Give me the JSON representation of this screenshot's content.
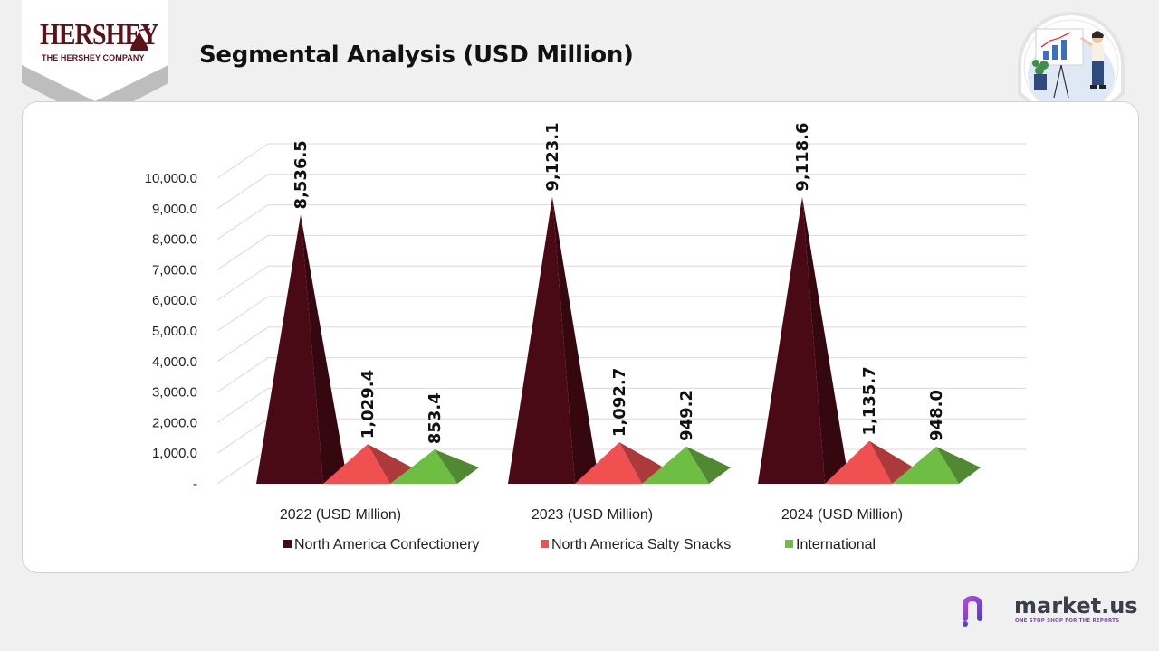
{
  "brand": {
    "name": "HERSHEY",
    "subtitle": "THE HERSHEY COMPANY"
  },
  "page": {
    "title": "Segmental Analysis (USD Million)"
  },
  "chart_data": {
    "type": "bar",
    "style": "3d-pyramid",
    "categories": [
      "2022 (USD Million)",
      "2023 (USD Million)",
      "2024 (USD Million)"
    ],
    "series": [
      {
        "name": "North America Confectionery",
        "color": "#4a0a15",
        "values": [
          8536.5,
          9123.1,
          9118.6
        ],
        "labels": [
          "8,536.5",
          "9,123.1",
          "9,118.6"
        ]
      },
      {
        "name": "North America Salty Snacks",
        "color": "#f05050",
        "values": [
          1029.4,
          1092.7,
          1135.7
        ],
        "labels": [
          "1,029.4",
          "1,092.7",
          "1,135.7"
        ]
      },
      {
        "name": "International",
        "color": "#6fbe44",
        "values": [
          853.4,
          949.2,
          948.0
        ],
        "labels": [
          "853.4",
          "949.2",
          "948.0"
        ]
      }
    ],
    "y_ticks": [
      "-",
      "1,000.0",
      "2,000.0",
      "3,000.0",
      "4,000.0",
      "5,000.0",
      "6,000.0",
      "7,000.0",
      "8,000.0",
      "9,000.0",
      "10,000.0"
    ],
    "ylim": [
      0,
      10000
    ],
    "grid": true,
    "legend_position": "bottom"
  },
  "footer": {
    "brand": "market.us",
    "tagline": "ONE STOP SHOP FOR THE REPORTS"
  },
  "colors": {
    "brand_maroon": "#5a1319",
    "background": "#f0f0f0",
    "card": "#ffffff",
    "marketus_purple": "#7a4bb0"
  },
  "icons": {
    "logo_mark": "hershey-kiss-icon",
    "illustration": "presenter-with-chart-icon",
    "footer_logo": "market-us-logo-icon"
  }
}
